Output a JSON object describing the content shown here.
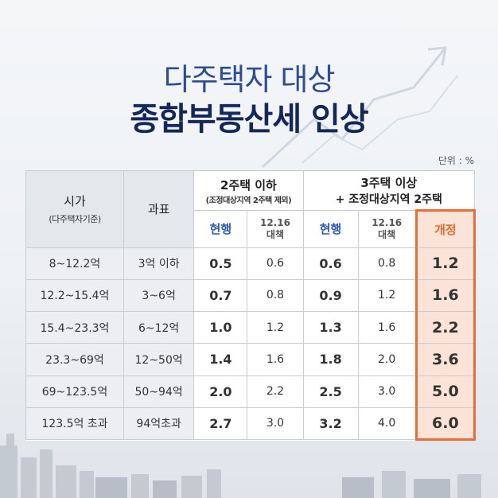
{
  "title": {
    "line1": "다주택자 대상",
    "line2": "종합부동산세 인상"
  },
  "unit": "단위 : %",
  "table": {
    "col_price": "시가",
    "col_price_sub": "(다주택자기준)",
    "col_base": "과표",
    "group1_title": "2주택 이하",
    "group1_sub": "(조정대상지역 2주택 제외)",
    "group2_title": "3주택 이상",
    "group2_sub": "+ 조정대상지역 2주택",
    "sub_current": "현행",
    "sub_1216_line1": "12.16",
    "sub_1216_line2": "대책",
    "sub_revised": "개정",
    "rows": [
      {
        "price": "8~12.2억",
        "base": "3억 이하",
        "g1_cur": "0.5",
        "g1_new": "0.6",
        "g2_cur": "0.6",
        "g2_new": "0.8",
        "rev": "1.2"
      },
      {
        "price": "12.2~15.4억",
        "base": "3~6억",
        "g1_cur": "0.7",
        "g1_new": "0.8",
        "g2_cur": "0.9",
        "g2_new": "1.2",
        "rev": "1.6"
      },
      {
        "price": "15.4~23.3억",
        "base": "6~12억",
        "g1_cur": "1.0",
        "g1_new": "1.2",
        "g2_cur": "1.3",
        "g2_new": "1.6",
        "rev": "2.2"
      },
      {
        "price": "23.3~69억",
        "base": "12~50억",
        "g1_cur": "1.4",
        "g1_new": "1.6",
        "g2_cur": "1.8",
        "g2_new": "2.0",
        "rev": "3.6"
      },
      {
        "price": "69~123.5억",
        "base": "50~94억",
        "g1_cur": "2.0",
        "g1_new": "2.2",
        "g2_cur": "2.5",
        "g2_new": "3.0",
        "rev": "5.0"
      },
      {
        "price": "123.5억 초과",
        "base": "94억초과",
        "g1_cur": "2.7",
        "g1_new": "3.0",
        "g2_cur": "3.2",
        "g2_new": "4.0",
        "rev": "6.0"
      }
    ]
  },
  "colors": {
    "title_light": "#2f4d97",
    "title_dark": "#14275a",
    "current_blue": "#2c5bbd",
    "revised_orange": "#e46a32",
    "revised_bg": "#fbe4d7"
  }
}
